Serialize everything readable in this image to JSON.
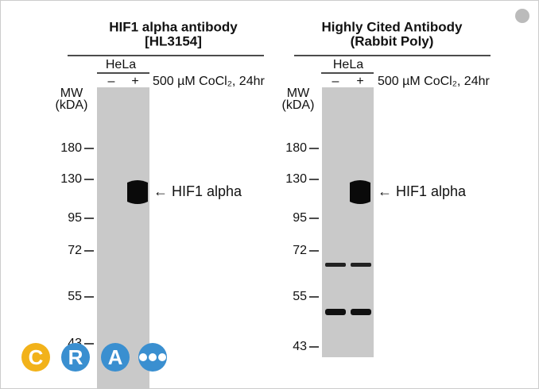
{
  "panels": [
    {
      "title": [
        "HIF1 alpha antibody",
        "[HL3154]"
      ],
      "cell_line": "HeLa",
      "lanes": [
        "–",
        "+"
      ],
      "treatment": "500 µM CoCl₂, 24hr",
      "mw_label": [
        "MW",
        "(kDA)"
      ],
      "markers": [
        "180",
        "130",
        "95",
        "72",
        "55",
        "43"
      ],
      "band_label": "← HIF1 alpha"
    },
    {
      "title": [
        "Highly Cited Antibody",
        "(Rabbit Poly)"
      ],
      "cell_line": "HeLa",
      "lanes": [
        "–",
        "+"
      ],
      "treatment": "500 µM CoCl₂, 24hr",
      "mw_label": [
        "MW",
        "(kDA)"
      ],
      "markers": [
        "180",
        "130",
        "95",
        "72",
        "55",
        "43"
      ],
      "band_label": "← HIF1 alpha"
    }
  ],
  "logo": [
    "C",
    "R",
    "A"
  ]
}
